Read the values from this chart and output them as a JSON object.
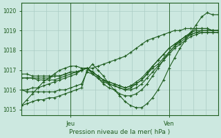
{
  "title": "Pression niveau de la mer( hPa )",
  "ylabel_values": [
    1015,
    1016,
    1017,
    1018,
    1019,
    1020
  ],
  "ylim": [
    1014.7,
    1020.4
  ],
  "xlim": [
    0,
    48
  ],
  "xtick_positions": [
    12,
    36
  ],
  "xtick_labels": [
    "Jeu",
    "Ven"
  ],
  "vline_positions": [
    12,
    36
  ],
  "bg_color": "#cce8e0",
  "grid_color": "#aaccc4",
  "line_color": "#1e5c1e",
  "line_width": 0.8,
  "marker": "+",
  "marker_size": 3.5,
  "series": [
    [
      1015.2,
      1015.5,
      1015.8,
      1016.1,
      1016.4,
      1016.6,
      1016.8,
      1017.0,
      1017.1,
      1017.2,
      1017.2,
      1017.1,
      1017.1,
      1017.1,
      1017.2,
      1017.3,
      1017.4,
      1017.5,
      1017.6,
      1017.7,
      1017.9,
      1018.1,
      1018.3,
      1018.5,
      1018.6,
      1018.7,
      1018.8,
      1018.9,
      1019.0,
      1019.0,
      1019.1,
      1019.1,
      1019.1,
      1019.1,
      1019.1,
      1019.0,
      1019.0
    ],
    [
      1016.0,
      1016.0,
      1016.1,
      1016.1,
      1016.2,
      1016.3,
      1016.4,
      1016.5,
      1016.6,
      1016.7,
      1016.8,
      1017.0,
      1017.1,
      1016.9,
      1016.7,
      1016.5,
      1016.3,
      1016.2,
      1016.1,
      1016.0,
      1016.0,
      1016.1,
      1016.3,
      1016.6,
      1016.9,
      1017.2,
      1017.5,
      1017.8,
      1018.1,
      1018.3,
      1018.5,
      1018.7,
      1018.8,
      1018.9,
      1018.9,
      1018.9,
      1018.9
    ],
    [
      1016.6,
      1016.6,
      1016.6,
      1016.6,
      1016.6,
      1016.6,
      1016.7,
      1016.7,
      1016.8,
      1016.9,
      1016.9,
      1017.0,
      1017.1,
      1016.9,
      1016.7,
      1016.5,
      1016.4,
      1016.3,
      1016.2,
      1016.1,
      1016.2,
      1016.3,
      1016.5,
      1016.8,
      1017.1,
      1017.3,
      1017.6,
      1017.9,
      1018.2,
      1018.4,
      1018.6,
      1018.8,
      1018.9,
      1019.0,
      1019.0,
      1019.0,
      1019.0
    ],
    [
      1016.8,
      1016.8,
      1016.7,
      1016.7,
      1016.7,
      1016.7,
      1016.7,
      1016.7,
      1016.8,
      1016.9,
      1016.9,
      1017.0,
      1017.1,
      1016.9,
      1016.7,
      1016.5,
      1016.4,
      1016.3,
      1016.2,
      1016.1,
      1016.2,
      1016.4,
      1016.6,
      1016.9,
      1017.2,
      1017.5,
      1017.8,
      1018.1,
      1018.3,
      1018.5,
      1018.7,
      1018.9,
      1019.0,
      1019.0,
      1019.0,
      1019.0,
      1019.0
    ],
    [
      1016.6,
      1016.6,
      1016.6,
      1016.5,
      1016.5,
      1016.5,
      1016.5,
      1016.6,
      1016.7,
      1016.8,
      1016.9,
      1017.0,
      1017.1,
      1016.8,
      1016.6,
      1016.4,
      1016.3,
      1016.2,
      1016.1,
      1016.0,
      1016.1,
      1016.3,
      1016.5,
      1016.8,
      1017.2,
      1017.5,
      1017.8,
      1018.1,
      1018.3,
      1018.5,
      1018.7,
      1018.8,
      1018.9,
      1018.9,
      1018.9,
      1018.9,
      1018.9
    ],
    [
      1016.0,
      1015.9,
      1015.9,
      1015.9,
      1015.9,
      1015.9,
      1015.9,
      1016.0,
      1016.0,
      1016.1,
      1016.2,
      1016.3,
      1016.9,
      1016.8,
      1016.6,
      1016.3,
      1016.1,
      1016.0,
      1015.8,
      1015.7,
      1015.7,
      1015.8,
      1016.0,
      1016.3,
      1016.7,
      1017.1,
      1017.5,
      1017.9,
      1018.2,
      1018.5,
      1018.7,
      1018.9,
      1019.1,
      1019.1,
      1019.1,
      1019.0,
      1019.0
    ],
    [
      1015.2,
      1015.3,
      1015.4,
      1015.5,
      1015.5,
      1015.6,
      1015.6,
      1015.7,
      1015.8,
      1015.9,
      1016.0,
      1016.1,
      1017.0,
      1017.3,
      1017.0,
      1016.7,
      1016.3,
      1016.0,
      1015.7,
      1015.4,
      1015.2,
      1015.1,
      1015.1,
      1015.3,
      1015.6,
      1016.0,
      1016.5,
      1017.1,
      1017.6,
      1018.1,
      1018.5,
      1018.9,
      1019.3,
      1019.7,
      1019.9,
      1019.8,
      1019.8
    ]
  ]
}
